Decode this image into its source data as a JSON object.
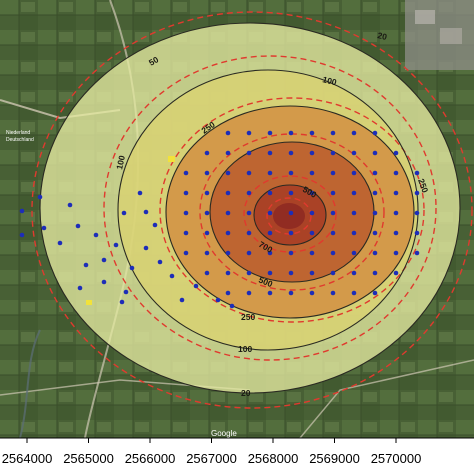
{
  "map": {
    "basemap_attribution": "Google",
    "place_labels": [
      "Niederland",
      "Deutschland"
    ],
    "contour_labels": [
      {
        "text": "20"
      },
      {
        "text": "50"
      },
      {
        "text": "100"
      },
      {
        "text": "250"
      },
      {
        "text": "500"
      },
      {
        "text": "700"
      },
      {
        "text": "250"
      },
      {
        "text": "500"
      },
      {
        "text": "250"
      },
      {
        "text": "100"
      },
      {
        "text": "20"
      },
      {
        "text": "100"
      }
    ],
    "x_axis": {
      "tick_labels": [
        "2564000",
        "2565000",
        "2566000",
        "2567000",
        "2568000",
        "2569000",
        "2570000"
      ]
    },
    "colors": {
      "zone_20": "#e6eaa2",
      "zone_100": "#d9d272",
      "zone_250": "#d28a3e",
      "zone_500": "#b9562a",
      "zone_700": "#a63a25",
      "zone_core": "#8e2a22",
      "dashed_contour": "#e03a2e",
      "solid_contour": "#2a2a22",
      "sample_point": "#1d2db8",
      "marker": "#f2e23a"
    }
  }
}
